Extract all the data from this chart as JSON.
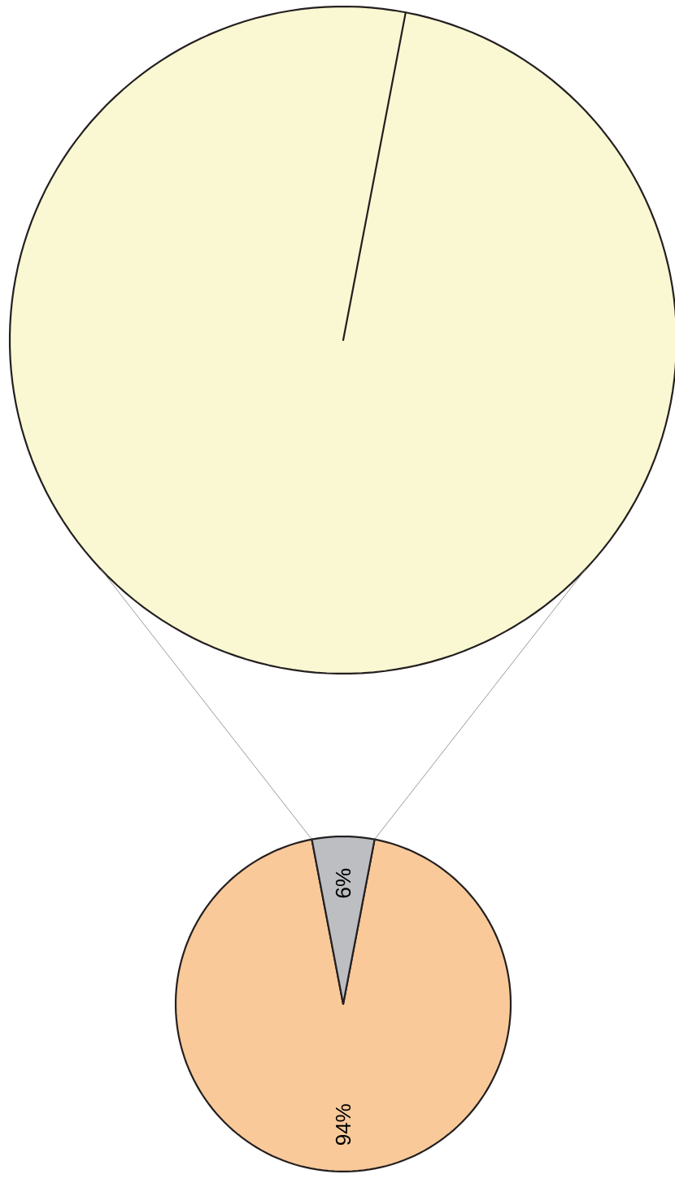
{
  "chart_data": [
    {
      "type": "pie",
      "categories": [
        null
      ],
      "values": [
        100
      ],
      "colors": [
        "#faf8d2"
      ]
    },
    {
      "type": "pie",
      "categories": [
        null,
        null
      ],
      "values": [
        94,
        6
      ],
      "colors": [
        "#f9c99a",
        "#bdbec2"
      ],
      "value_labels": [
        "94%",
        "6%"
      ]
    }
  ]
}
